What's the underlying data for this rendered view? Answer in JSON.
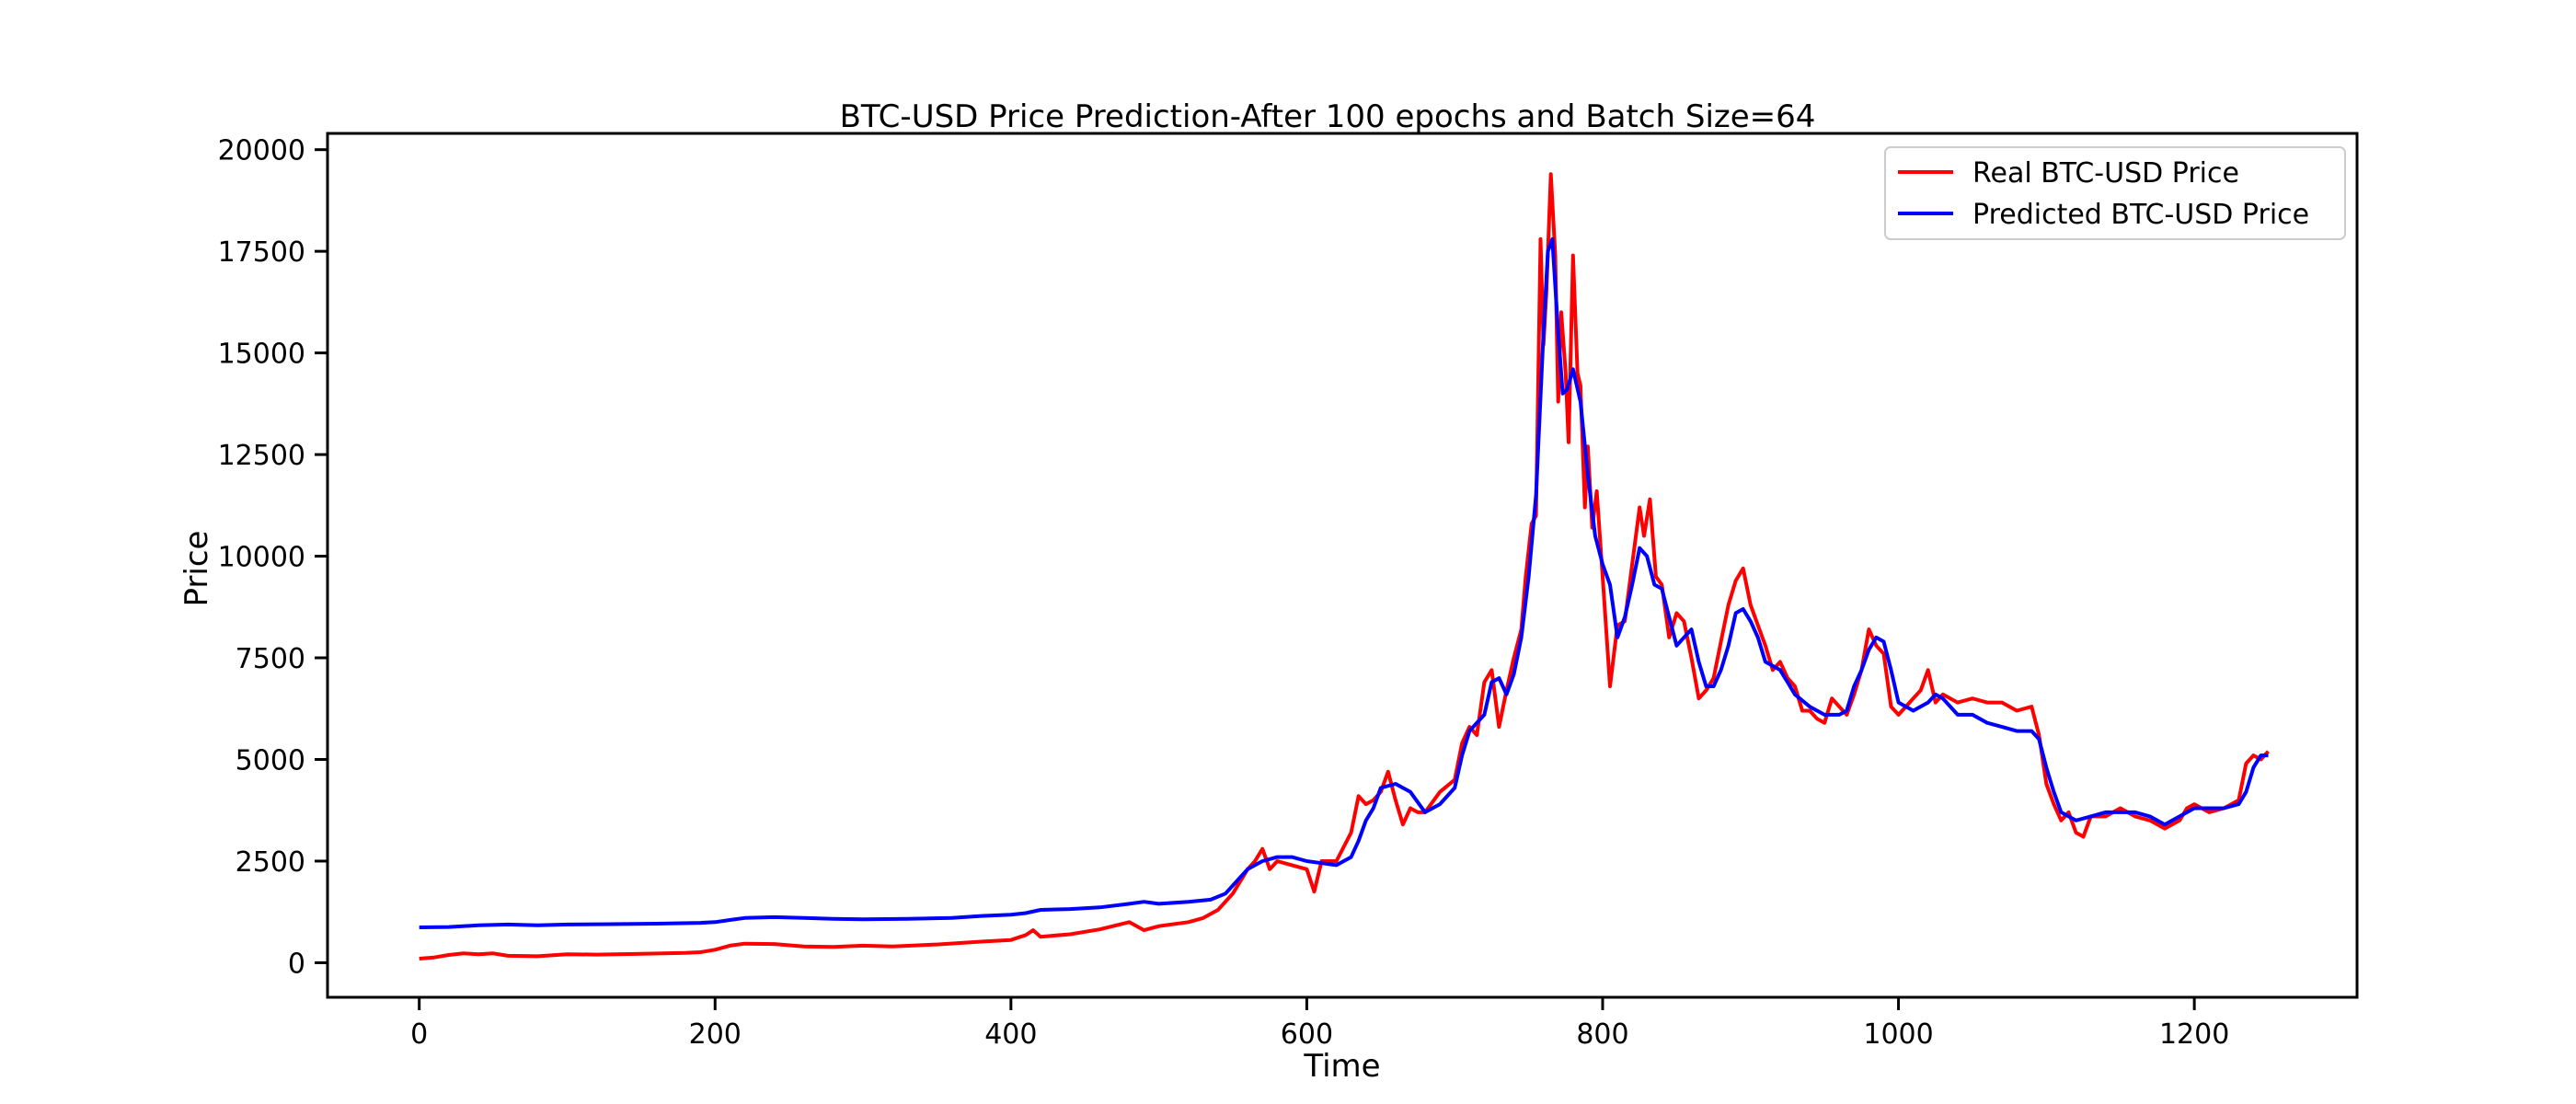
{
  "chart_data": {
    "type": "line",
    "title": "BTC-USD Price Prediction-After 100 epochs and Batch Size=64",
    "xlabel": "Time",
    "ylabel": "Price",
    "xlim": [
      -62,
      1310
    ],
    "ylim": [
      -850,
      20400
    ],
    "xticks": [
      0,
      200,
      400,
      600,
      800,
      1000,
      1200
    ],
    "yticks": [
      0,
      2500,
      5000,
      7500,
      10000,
      12500,
      15000,
      17500,
      20000
    ],
    "grid": false,
    "legend_position": "upper right",
    "series": [
      {
        "name": "Real BTC-USD Price",
        "color": "#ff0000",
        "points": [
          [
            0,
            100
          ],
          [
            10,
            130
          ],
          [
            20,
            190
          ],
          [
            30,
            230
          ],
          [
            40,
            210
          ],
          [
            50,
            230
          ],
          [
            60,
            170
          ],
          [
            80,
            160
          ],
          [
            100,
            210
          ],
          [
            120,
            200
          ],
          [
            150,
            220
          ],
          [
            180,
            240
          ],
          [
            190,
            260
          ],
          [
            200,
            320
          ],
          [
            210,
            420
          ],
          [
            220,
            470
          ],
          [
            240,
            460
          ],
          [
            260,
            400
          ],
          [
            280,
            390
          ],
          [
            300,
            420
          ],
          [
            320,
            400
          ],
          [
            350,
            450
          ],
          [
            380,
            520
          ],
          [
            400,
            560
          ],
          [
            410,
            680
          ],
          [
            415,
            800
          ],
          [
            420,
            640
          ],
          [
            440,
            700
          ],
          [
            460,
            820
          ],
          [
            480,
            1000
          ],
          [
            490,
            800
          ],
          [
            500,
            900
          ],
          [
            520,
            1000
          ],
          [
            530,
            1100
          ],
          [
            540,
            1300
          ],
          [
            550,
            1700
          ],
          [
            560,
            2300
          ],
          [
            565,
            2500
          ],
          [
            570,
            2800
          ],
          [
            575,
            2300
          ],
          [
            580,
            2500
          ],
          [
            590,
            2400
          ],
          [
            600,
            2300
          ],
          [
            605,
            1750
          ],
          [
            610,
            2500
          ],
          [
            620,
            2500
          ],
          [
            630,
            3200
          ],
          [
            635,
            4100
          ],
          [
            640,
            3900
          ],
          [
            645,
            4000
          ],
          [
            650,
            4200
          ],
          [
            655,
            4700
          ],
          [
            660,
            4000
          ],
          [
            665,
            3400
          ],
          [
            670,
            3800
          ],
          [
            675,
            3700
          ],
          [
            680,
            3700
          ],
          [
            690,
            4200
          ],
          [
            700,
            4500
          ],
          [
            705,
            5400
          ],
          [
            710,
            5800
          ],
          [
            715,
            5600
          ],
          [
            720,
            6900
          ],
          [
            725,
            7200
          ],
          [
            730,
            5800
          ],
          [
            735,
            6700
          ],
          [
            740,
            7500
          ],
          [
            745,
            8200
          ],
          [
            748,
            9500
          ],
          [
            752,
            10800
          ],
          [
            755,
            11000
          ],
          [
            758,
            17800
          ],
          [
            760,
            15200
          ],
          [
            762,
            16500
          ],
          [
            765,
            19400
          ],
          [
            768,
            17400
          ],
          [
            770,
            13800
          ],
          [
            772,
            16000
          ],
          [
            775,
            14500
          ],
          [
            777,
            12800
          ],
          [
            780,
            17400
          ],
          [
            783,
            14500
          ],
          [
            785,
            14200
          ],
          [
            788,
            11200
          ],
          [
            790,
            12700
          ],
          [
            793,
            10700
          ],
          [
            796,
            11600
          ],
          [
            800,
            9500
          ],
          [
            805,
            6800
          ],
          [
            810,
            8300
          ],
          [
            815,
            8400
          ],
          [
            820,
            9800
          ],
          [
            825,
            11200
          ],
          [
            828,
            10500
          ],
          [
            832,
            11400
          ],
          [
            836,
            9500
          ],
          [
            840,
            9300
          ],
          [
            845,
            8000
          ],
          [
            850,
            8600
          ],
          [
            855,
            8400
          ],
          [
            860,
            7500
          ],
          [
            865,
            6500
          ],
          [
            870,
            6700
          ],
          [
            875,
            7000
          ],
          [
            880,
            7900
          ],
          [
            885,
            8800
          ],
          [
            890,
            9400
          ],
          [
            895,
            9700
          ],
          [
            900,
            8800
          ],
          [
            905,
            8300
          ],
          [
            910,
            7800
          ],
          [
            915,
            7200
          ],
          [
            920,
            7400
          ],
          [
            925,
            7000
          ],
          [
            930,
            6800
          ],
          [
            935,
            6200
          ],
          [
            940,
            6200
          ],
          [
            945,
            6000
          ],
          [
            950,
            5900
          ],
          [
            955,
            6500
          ],
          [
            960,
            6300
          ],
          [
            965,
            6100
          ],
          [
            970,
            6600
          ],
          [
            975,
            7200
          ],
          [
            980,
            8200
          ],
          [
            985,
            7800
          ],
          [
            990,
            7600
          ],
          [
            995,
            6300
          ],
          [
            1000,
            6100
          ],
          [
            1005,
            6300
          ],
          [
            1010,
            6500
          ],
          [
            1015,
            6700
          ],
          [
            1020,
            7200
          ],
          [
            1025,
            6400
          ],
          [
            1030,
            6600
          ],
          [
            1040,
            6400
          ],
          [
            1050,
            6500
          ],
          [
            1060,
            6400
          ],
          [
            1070,
            6400
          ],
          [
            1080,
            6200
          ],
          [
            1090,
            6300
          ],
          [
            1095,
            5600
          ],
          [
            1100,
            4400
          ],
          [
            1105,
            3900
          ],
          [
            1110,
            3500
          ],
          [
            1115,
            3700
          ],
          [
            1120,
            3200
          ],
          [
            1125,
            3100
          ],
          [
            1130,
            3600
          ],
          [
            1140,
            3600
          ],
          [
            1150,
            3800
          ],
          [
            1160,
            3600
          ],
          [
            1170,
            3500
          ],
          [
            1180,
            3300
          ],
          [
            1190,
            3500
          ],
          [
            1195,
            3800
          ],
          [
            1200,
            3900
          ],
          [
            1210,
            3700
          ],
          [
            1220,
            3800
          ],
          [
            1230,
            4000
          ],
          [
            1235,
            4900
          ],
          [
            1240,
            5100
          ],
          [
            1245,
            5000
          ],
          [
            1250,
            5200
          ]
        ]
      },
      {
        "name": "Predicted BTC-USD Price",
        "color": "#0000ff",
        "points": [
          [
            0,
            870
          ],
          [
            20,
            880
          ],
          [
            40,
            920
          ],
          [
            60,
            940
          ],
          [
            80,
            920
          ],
          [
            100,
            940
          ],
          [
            130,
            950
          ],
          [
            160,
            960
          ],
          [
            190,
            980
          ],
          [
            200,
            1000
          ],
          [
            210,
            1050
          ],
          [
            220,
            1100
          ],
          [
            240,
            1120
          ],
          [
            260,
            1100
          ],
          [
            280,
            1080
          ],
          [
            300,
            1070
          ],
          [
            330,
            1080
          ],
          [
            360,
            1100
          ],
          [
            380,
            1150
          ],
          [
            400,
            1180
          ],
          [
            410,
            1220
          ],
          [
            420,
            1300
          ],
          [
            440,
            1320
          ],
          [
            460,
            1360
          ],
          [
            480,
            1450
          ],
          [
            490,
            1500
          ],
          [
            500,
            1450
          ],
          [
            520,
            1500
          ],
          [
            535,
            1550
          ],
          [
            545,
            1700
          ],
          [
            555,
            2100
          ],
          [
            560,
            2300
          ],
          [
            570,
            2500
          ],
          [
            580,
            2600
          ],
          [
            590,
            2600
          ],
          [
            600,
            2500
          ],
          [
            610,
            2450
          ],
          [
            620,
            2400
          ],
          [
            630,
            2600
          ],
          [
            635,
            3000
          ],
          [
            640,
            3500
          ],
          [
            645,
            3800
          ],
          [
            650,
            4300
          ],
          [
            660,
            4400
          ],
          [
            670,
            4200
          ],
          [
            680,
            3700
          ],
          [
            690,
            3900
          ],
          [
            700,
            4300
          ],
          [
            705,
            5100
          ],
          [
            710,
            5700
          ],
          [
            715,
            5900
          ],
          [
            720,
            6100
          ],
          [
            725,
            6900
          ],
          [
            730,
            7000
          ],
          [
            735,
            6600
          ],
          [
            740,
            7100
          ],
          [
            745,
            8000
          ],
          [
            750,
            9500
          ],
          [
            755,
            11500
          ],
          [
            760,
            15500
          ],
          [
            763,
            17500
          ],
          [
            766,
            17800
          ],
          [
            770,
            15500
          ],
          [
            773,
            14000
          ],
          [
            776,
            14100
          ],
          [
            780,
            14600
          ],
          [
            785,
            13800
          ],
          [
            790,
            12000
          ],
          [
            795,
            10500
          ],
          [
            800,
            9800
          ],
          [
            805,
            9300
          ],
          [
            810,
            8000
          ],
          [
            815,
            8500
          ],
          [
            820,
            9300
          ],
          [
            825,
            10200
          ],
          [
            830,
            10000
          ],
          [
            835,
            9300
          ],
          [
            840,
            9200
          ],
          [
            845,
            8500
          ],
          [
            850,
            7800
          ],
          [
            855,
            8000
          ],
          [
            860,
            8200
          ],
          [
            865,
            7400
          ],
          [
            870,
            6800
          ],
          [
            875,
            6800
          ],
          [
            880,
            7200
          ],
          [
            885,
            7800
          ],
          [
            890,
            8600
          ],
          [
            895,
            8700
          ],
          [
            900,
            8400
          ],
          [
            905,
            8000
          ],
          [
            910,
            7400
          ],
          [
            920,
            7200
          ],
          [
            925,
            6900
          ],
          [
            930,
            6600
          ],
          [
            940,
            6300
          ],
          [
            950,
            6100
          ],
          [
            960,
            6100
          ],
          [
            965,
            6200
          ],
          [
            970,
            6800
          ],
          [
            975,
            7200
          ],
          [
            980,
            7700
          ],
          [
            985,
            8000
          ],
          [
            990,
            7900
          ],
          [
            995,
            7200
          ],
          [
            1000,
            6400
          ],
          [
            1010,
            6200
          ],
          [
            1020,
            6400
          ],
          [
            1025,
            6600
          ],
          [
            1030,
            6500
          ],
          [
            1040,
            6100
          ],
          [
            1050,
            6100
          ],
          [
            1060,
            5900
          ],
          [
            1070,
            5800
          ],
          [
            1080,
            5700
          ],
          [
            1090,
            5700
          ],
          [
            1095,
            5500
          ],
          [
            1100,
            4800
          ],
          [
            1105,
            4200
          ],
          [
            1110,
            3700
          ],
          [
            1120,
            3500
          ],
          [
            1130,
            3600
          ],
          [
            1140,
            3700
          ],
          [
            1150,
            3700
          ],
          [
            1160,
            3700
          ],
          [
            1170,
            3600
          ],
          [
            1180,
            3400
          ],
          [
            1190,
            3600
          ],
          [
            1200,
            3800
          ],
          [
            1210,
            3800
          ],
          [
            1220,
            3800
          ],
          [
            1230,
            3900
          ],
          [
            1235,
            4200
          ],
          [
            1240,
            4800
          ],
          [
            1245,
            5100
          ],
          [
            1250,
            5100
          ]
        ]
      }
    ]
  }
}
